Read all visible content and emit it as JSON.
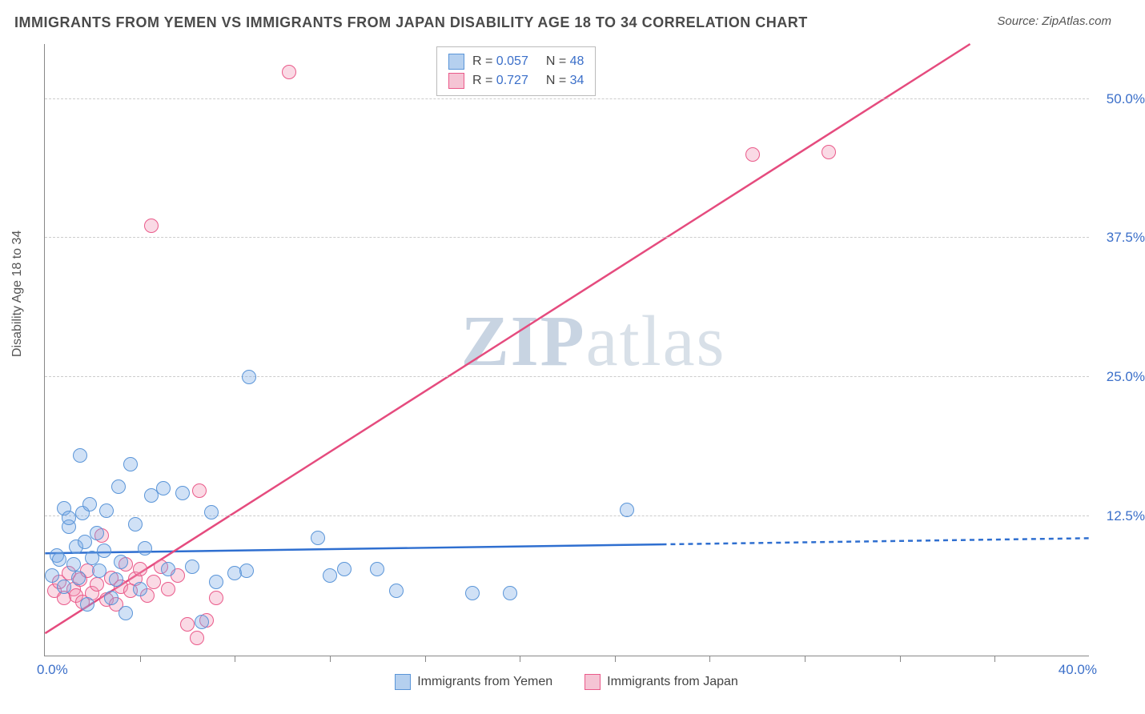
{
  "title": "IMMIGRANTS FROM YEMEN VS IMMIGRANTS FROM JAPAN DISABILITY AGE 18 TO 34 CORRELATION CHART",
  "source_label": "Source: ",
  "source_name": "ZipAtlas.com",
  "ylabel": "Disability Age 18 to 34",
  "watermark_a": "ZIP",
  "watermark_b": "atlas",
  "chart": {
    "type": "scatter",
    "xlim": [
      0,
      44
    ],
    "ylim": [
      0,
      55
    ],
    "xtick_low": "0.0%",
    "xtick_high": "40.0%",
    "yticks": [
      {
        "v": 12.5,
        "label": "12.5%"
      },
      {
        "v": 25.0,
        "label": "25.0%"
      },
      {
        "v": 37.5,
        "label": "37.5%"
      },
      {
        "v": 50.0,
        "label": "50.0%"
      }
    ],
    "xgrid": [
      4,
      8,
      12,
      16,
      20,
      24,
      28,
      32,
      36,
      40
    ],
    "colors": {
      "blue_fill": "#b5d0ef",
      "blue_stroke": "#5a95d8",
      "pink_fill": "#f5c4d4",
      "pink_stroke": "#ea5a8a",
      "blue_line": "#2f6fd0",
      "pink_line": "#e54b7e",
      "tick_text": "#3b6fc9",
      "grid": "#cccccc"
    },
    "series_blue": {
      "label": "Immigrants from Yemen",
      "R": "0.057",
      "N": "48",
      "trend": {
        "x1": 0,
        "y1": 9.2,
        "x2": 26,
        "y2": 10.0,
        "dash_to_x": 44
      },
      "points": [
        [
          0.3,
          7.2
        ],
        [
          0.5,
          9.0
        ],
        [
          0.6,
          8.6
        ],
        [
          0.8,
          6.2
        ],
        [
          0.8,
          13.2
        ],
        [
          1.0,
          11.6
        ],
        [
          1.0,
          12.4
        ],
        [
          1.2,
          8.2
        ],
        [
          1.3,
          9.8
        ],
        [
          1.4,
          7.0
        ],
        [
          1.5,
          18.0
        ],
        [
          1.6,
          12.8
        ],
        [
          1.7,
          10.2
        ],
        [
          1.8,
          4.6
        ],
        [
          1.9,
          13.6
        ],
        [
          2.0,
          8.8
        ],
        [
          2.2,
          11.0
        ],
        [
          2.3,
          7.6
        ],
        [
          2.5,
          9.4
        ],
        [
          2.6,
          13.0
        ],
        [
          2.8,
          5.2
        ],
        [
          3.0,
          6.8
        ],
        [
          3.1,
          15.2
        ],
        [
          3.2,
          8.4
        ],
        [
          3.4,
          3.8
        ],
        [
          3.6,
          17.2
        ],
        [
          3.8,
          11.8
        ],
        [
          4.0,
          6.0
        ],
        [
          4.2,
          9.6
        ],
        [
          4.5,
          14.4
        ],
        [
          5.0,
          15.0
        ],
        [
          5.2,
          7.8
        ],
        [
          5.8,
          14.6
        ],
        [
          6.2,
          8.0
        ],
        [
          6.6,
          3.0
        ],
        [
          7.0,
          12.9
        ],
        [
          7.2,
          6.6
        ],
        [
          8.0,
          7.4
        ],
        [
          8.5,
          7.6
        ],
        [
          8.6,
          25.0
        ],
        [
          11.5,
          10.6
        ],
        [
          12.0,
          7.2
        ],
        [
          12.6,
          7.8
        ],
        [
          14.0,
          7.8
        ],
        [
          14.8,
          5.8
        ],
        [
          18.0,
          5.6
        ],
        [
          19.6,
          5.6
        ],
        [
          24.5,
          13.1
        ]
      ]
    },
    "series_pink": {
      "label": "Immigrants from Japan",
      "R": "0.727",
      "N": "34",
      "trend": {
        "x1": 0,
        "y1": 2.0,
        "x2": 39,
        "y2": 55.0
      },
      "points": [
        [
          0.4,
          5.8
        ],
        [
          0.6,
          6.6
        ],
        [
          0.8,
          5.2
        ],
        [
          1.0,
          7.4
        ],
        [
          1.2,
          6.0
        ],
        [
          1.3,
          5.4
        ],
        [
          1.5,
          6.8
        ],
        [
          1.6,
          4.8
        ],
        [
          1.8,
          7.6
        ],
        [
          2.0,
          5.6
        ],
        [
          2.2,
          6.4
        ],
        [
          2.4,
          10.8
        ],
        [
          2.6,
          5.0
        ],
        [
          2.8,
          7.0
        ],
        [
          3.0,
          4.6
        ],
        [
          3.2,
          6.2
        ],
        [
          3.4,
          8.2
        ],
        [
          3.6,
          5.8
        ],
        [
          3.8,
          6.9
        ],
        [
          4.0,
          7.8
        ],
        [
          4.3,
          5.4
        ],
        [
          4.6,
          6.6
        ],
        [
          4.9,
          8.0
        ],
        [
          5.2,
          6.0
        ],
        [
          5.6,
          7.2
        ],
        [
          6.0,
          2.8
        ],
        [
          6.4,
          1.6
        ],
        [
          6.8,
          3.2
        ],
        [
          7.2,
          5.2
        ],
        [
          4.5,
          38.6
        ],
        [
          6.5,
          14.8
        ],
        [
          10.3,
          52.4
        ],
        [
          29.8,
          45.0
        ],
        [
          33.0,
          45.2
        ]
      ]
    }
  },
  "legend_top": {
    "R_label": "R = ",
    "N_label": "N = "
  }
}
